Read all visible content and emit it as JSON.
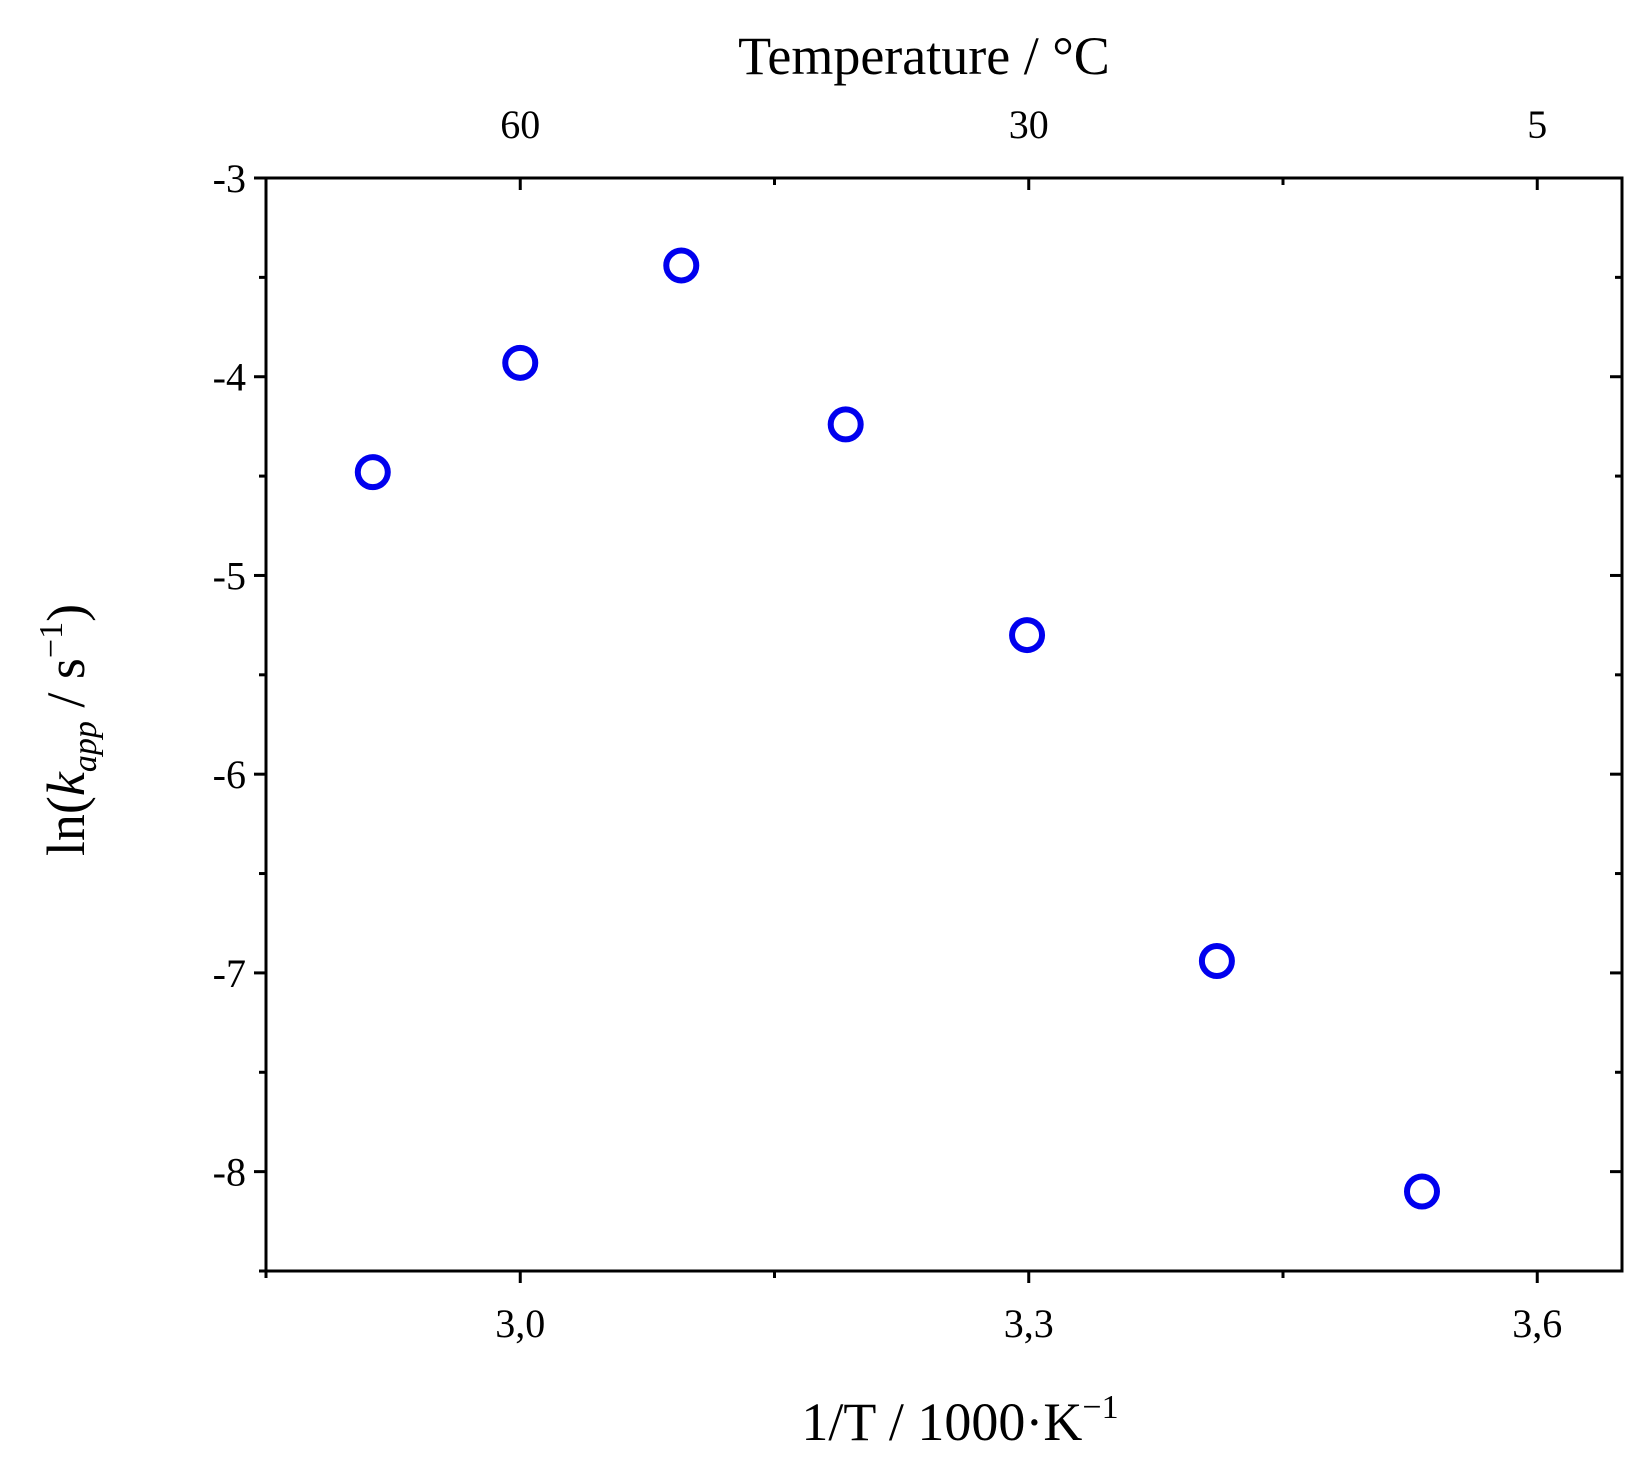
{
  "chart_data": {
    "type": "scatter",
    "title": "",
    "xlabel": "1/T / 1000·K⁻¹",
    "xlabel_parts": {
      "main": "1/T / 1000·K",
      "sup": "−1"
    },
    "ylabel": "ln(k_app / s⁻¹)",
    "ylabel_parts": {
      "pre": "ln(",
      "k": "k",
      "sub": "app",
      "mid": " / s",
      "sup": "−1",
      "post": ")"
    },
    "top_xlabel": "Temperature / °C",
    "xlim": [
      2.85,
      3.65
    ],
    "ylim": [
      -8.5,
      -3
    ],
    "x_ticks": [
      {
        "value": 3.0,
        "label": "3,0"
      },
      {
        "value": 3.3,
        "label": "3,3"
      },
      {
        "value": 3.6,
        "label": "3,6"
      }
    ],
    "x_minor_ticks": [
      2.85,
      3.15,
      3.45
    ],
    "y_ticks": [
      {
        "value": -3,
        "label": "-3"
      },
      {
        "value": -4,
        "label": "-4"
      },
      {
        "value": -5,
        "label": "-5"
      },
      {
        "value": -6,
        "label": "-6"
      },
      {
        "value": -7,
        "label": "-7"
      },
      {
        "value": -8,
        "label": "-8"
      }
    ],
    "y_minor_ticks": [
      -3.5,
      -4.5,
      -5.5,
      -6.5,
      -7.5,
      -8.5
    ],
    "top_ticks": [
      {
        "value": 3.0,
        "label": "60"
      },
      {
        "value": 3.3,
        "label": "30"
      },
      {
        "value": 3.6,
        "label": "5"
      }
    ],
    "top_minor_ticks": [
      3.15,
      3.45
    ],
    "grid": false,
    "marker_color": "#0000ee",
    "marker_style": "open-circle",
    "series": [
      {
        "points": [
          {
            "x": 2.913,
            "y": -4.48
          },
          {
            "x": 3.0,
            "y": -3.93
          },
          {
            "x": 3.095,
            "y": -3.44
          },
          {
            "x": 3.192,
            "y": -4.24
          },
          {
            "x": 3.299,
            "y": -5.3
          },
          {
            "x": 3.411,
            "y": -6.94
          },
          {
            "x": 3.532,
            "y": -8.1
          }
        ]
      }
    ]
  }
}
